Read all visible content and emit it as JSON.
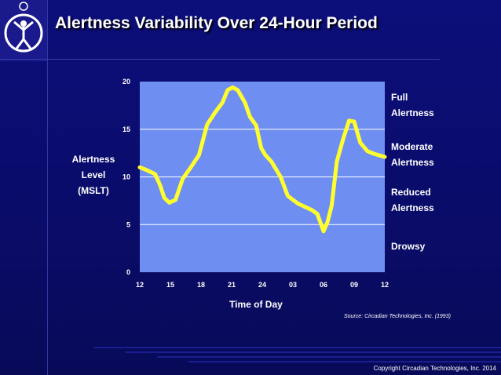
{
  "title": "Alertness Variability Over 24-Hour Period",
  "ylabel_lines": [
    "Alertness",
    "Level",
    "(MSLT)"
  ],
  "xlabel": "Time of Day",
  "zones": {
    "full": [
      "Full",
      "Alertness"
    ],
    "moderate": [
      "Moderate",
      "Alertness"
    ],
    "reduced": [
      "Reduced",
      "Alertness"
    ],
    "drowsy": [
      "Drowsy"
    ]
  },
  "source": "Source: Circadian Technologies, Inc. (1993)",
  "copyright": "Copyright Circadian Technologies, Inc. 2014",
  "colors": {
    "plot_bg": "#6f8ef2",
    "line": "#ffff2e",
    "background": "#0c0e7a"
  },
  "chart_data": {
    "type": "line",
    "x_ticks": [
      "12",
      "15",
      "18",
      "21",
      "24",
      "03",
      "06",
      "09",
      "12"
    ],
    "y_ticks": [
      "0",
      "5",
      "10",
      "15",
      "20"
    ],
    "ylim": [
      0,
      20
    ],
    "xlim_hours": [
      0,
      24
    ],
    "grid": "horizontal",
    "series": [
      {
        "hours": [
          0,
          0.5,
          1.5,
          2.0,
          2.4,
          2.9,
          3.5,
          4.2,
          5.0,
          5.8,
          6.6,
          7.4,
          8.1,
          8.6,
          9.1,
          9.6,
          10.3,
          10.8,
          11.4,
          11.9,
          12.3,
          12.9,
          13.8,
          14.5,
          15.5,
          16.3,
          16.9,
          17.4,
          18.0,
          18.4,
          18.8,
          19.3,
          19.9,
          20.5,
          21.0,
          21.6,
          22.3,
          23.0,
          24.0
        ],
        "values": [
          11.0,
          10.8,
          10.3,
          9.1,
          7.8,
          7.3,
          7.6,
          9.8,
          11.0,
          12.3,
          15.5,
          16.8,
          17.8,
          19.1,
          19.4,
          19.1,
          17.8,
          16.3,
          15.4,
          13.0,
          12.3,
          11.6,
          10.0,
          8.0,
          7.2,
          6.8,
          6.5,
          6.1,
          4.3,
          5.3,
          7.0,
          11.6,
          13.9,
          15.9,
          15.8,
          13.6,
          12.7,
          12.4,
          12.1
        ]
      }
    ]
  }
}
